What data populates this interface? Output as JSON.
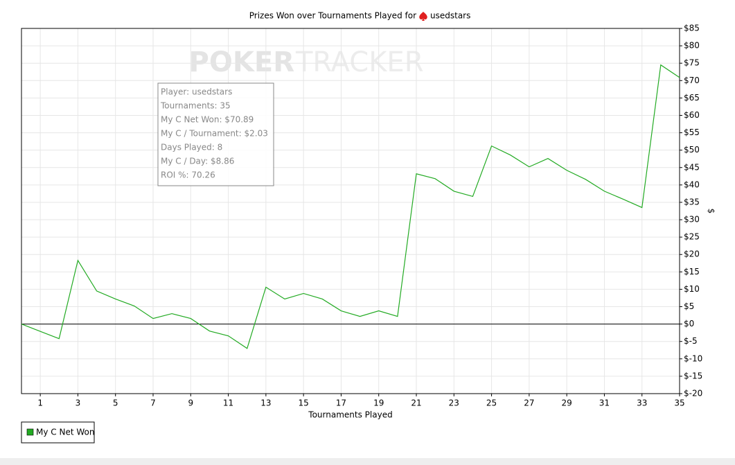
{
  "chart_data": {
    "type": "line",
    "title": "Prizes Won over Tournaments Played for",
    "player": "usedstars",
    "watermark": [
      "POKER",
      "TRACKER"
    ],
    "xlabel": "Tournaments Played",
    "ylabel": "$",
    "annotations": [
      "Player: usedstars",
      "Tournaments: 35",
      "My C Net Won: $70.89",
      "My C / Tournament: $2.03",
      "Days Played: 8",
      "My C / Day: $8.86",
      "ROI %: 70.26"
    ],
    "x": [
      0,
      1,
      2,
      3,
      4,
      5,
      6,
      7,
      8,
      9,
      10,
      11,
      12,
      13,
      14,
      15,
      16,
      17,
      18,
      19,
      20,
      21,
      22,
      23,
      24,
      25,
      26,
      27,
      28,
      29,
      30,
      31,
      32,
      33,
      34,
      35
    ],
    "series": [
      {
        "name": "My C Net Won",
        "color": "#22aa22",
        "values": [
          0,
          -2.1,
          -4.2,
          18.3,
          9.5,
          7.2,
          5.2,
          1.6,
          3.0,
          1.6,
          -2.0,
          -3.4,
          -7.0,
          10.6,
          7.2,
          8.8,
          7.2,
          3.8,
          2.2,
          3.8,
          2.2,
          43.2,
          41.8,
          38.2,
          36.7,
          51.2,
          48.6,
          45.2,
          47.6,
          44.2,
          41.6,
          38.2,
          35.9,
          33.5,
          74.5,
          70.89
        ]
      }
    ],
    "xlim": [
      0,
      35
    ],
    "xticks": [
      1,
      3,
      5,
      7,
      9,
      11,
      13,
      15,
      17,
      19,
      21,
      23,
      25,
      27,
      29,
      31,
      33,
      35
    ],
    "ylim": [
      -20,
      85
    ],
    "yticks": [
      {
        "value": -20,
        "label": "$-20"
      },
      {
        "value": -15,
        "label": "$-15"
      },
      {
        "value": -10,
        "label": "$-10"
      },
      {
        "value": -5,
        "label": "$-5"
      },
      {
        "value": 0,
        "label": "$0"
      },
      {
        "value": 5,
        "label": "$5"
      },
      {
        "value": 10,
        "label": "$10"
      },
      {
        "value": 15,
        "label": "$15"
      },
      {
        "value": 20,
        "label": "$20"
      },
      {
        "value": 25,
        "label": "$25"
      },
      {
        "value": 30,
        "label": "$30"
      },
      {
        "value": 35,
        "label": "$35"
      },
      {
        "value": 40,
        "label": "$40"
      },
      {
        "value": 45,
        "label": "$45"
      },
      {
        "value": 50,
        "label": "$50"
      },
      {
        "value": 55,
        "label": "$55"
      },
      {
        "value": 60,
        "label": "$60"
      },
      {
        "value": 65,
        "label": "$65"
      },
      {
        "value": 70,
        "label": "$70"
      },
      {
        "value": 75,
        "label": "$75"
      },
      {
        "value": 80,
        "label": "$80"
      },
      {
        "value": 85,
        "label": "$85"
      }
    ],
    "grid": true
  }
}
